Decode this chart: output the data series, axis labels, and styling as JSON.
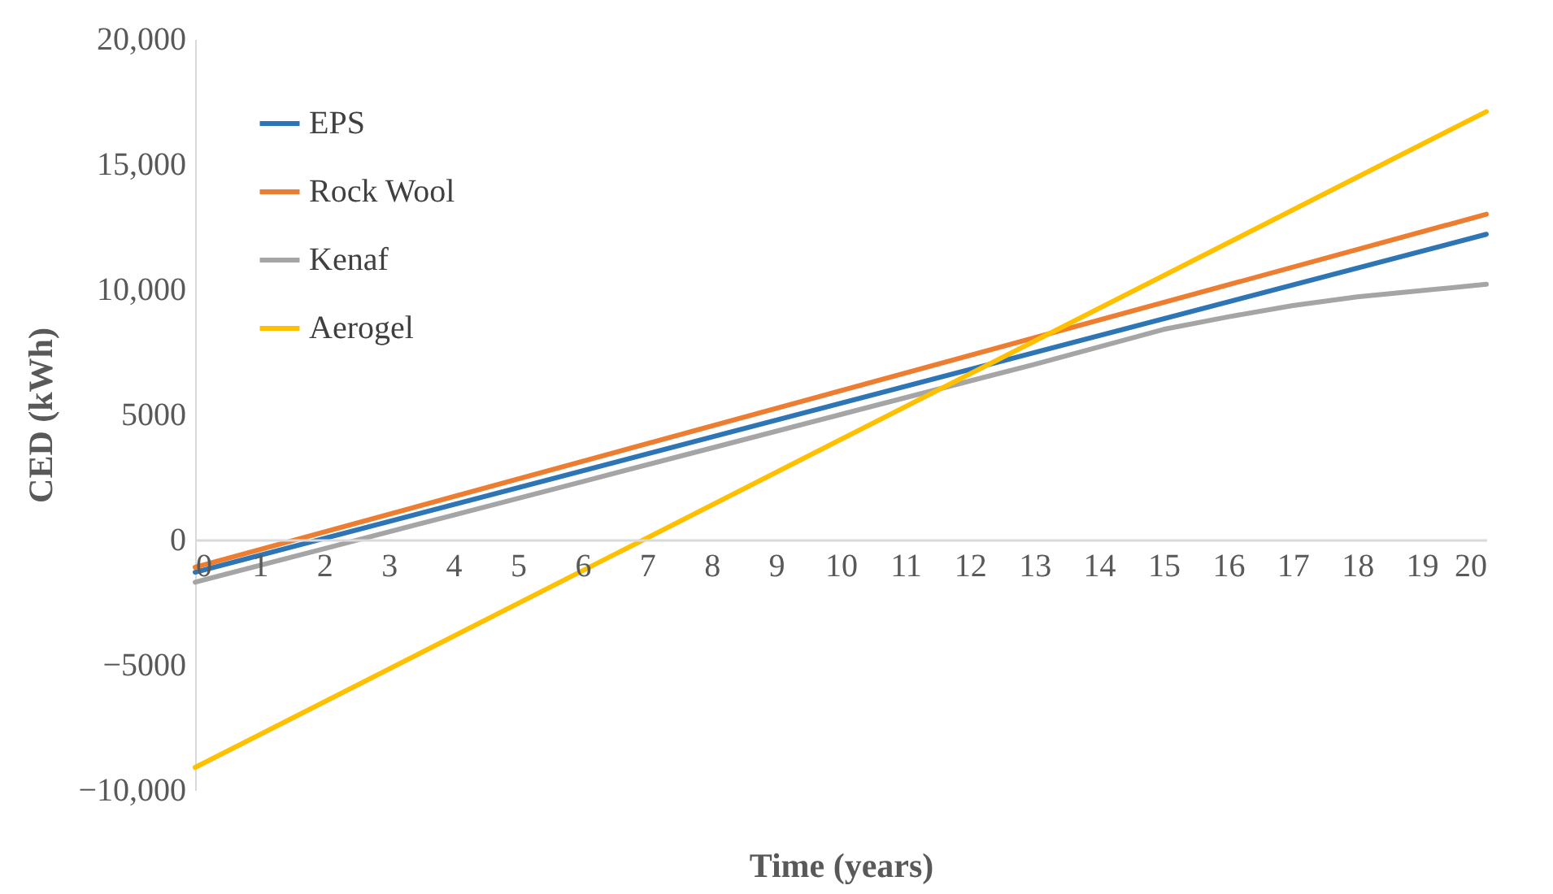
{
  "chart_data": {
    "type": "line",
    "xlabel": "Time (years)",
    "ylabel": "CED (kWh)",
    "series": [
      {
        "name": "EPS",
        "color": "#2e75b6",
        "x": [
          0,
          20
        ],
        "values": [
          -1300,
          12200
        ]
      },
      {
        "name": "Rock Wool",
        "color": "#ed7d31",
        "x": [
          0,
          20
        ],
        "values": [
          -1100,
          13000
        ]
      },
      {
        "name": "Kenaf",
        "color": "#a5a5a5",
        "x": [
          0,
          2,
          4,
          6,
          8,
          10,
          12,
          13,
          14,
          15,
          16,
          17,
          18,
          19,
          20
        ],
        "values": [
          -1700,
          -360,
          980,
          2320,
          3660,
          5000,
          6340,
          7000,
          7700,
          8400,
          8900,
          9350,
          9700,
          9950,
          10200
        ]
      },
      {
        "name": "Aerogel",
        "color": "#ffc000",
        "x": [
          0,
          20
        ],
        "values": [
          -9100,
          17100
        ]
      }
    ],
    "xlim": [
      0,
      20
    ],
    "xticks": [
      0,
      1,
      2,
      3,
      4,
      5,
      6,
      7,
      8,
      9,
      10,
      11,
      12,
      13,
      14,
      15,
      16,
      17,
      18,
      19,
      20
    ],
    "ylim": [
      -10000,
      20000
    ],
    "yticks": [
      {
        "value": -10000,
        "label": "−10,000"
      },
      {
        "value": -5000,
        "label": "−5000"
      },
      0,
      5000,
      {
        "value": 10000,
        "label": "10,000"
      },
      {
        "value": 15000,
        "label": "15,000"
      },
      {
        "value": 20000,
        "label": "20,000"
      }
    ],
    "grid": false,
    "legend": "top left",
    "marker": "none",
    "line_style": "solid"
  }
}
